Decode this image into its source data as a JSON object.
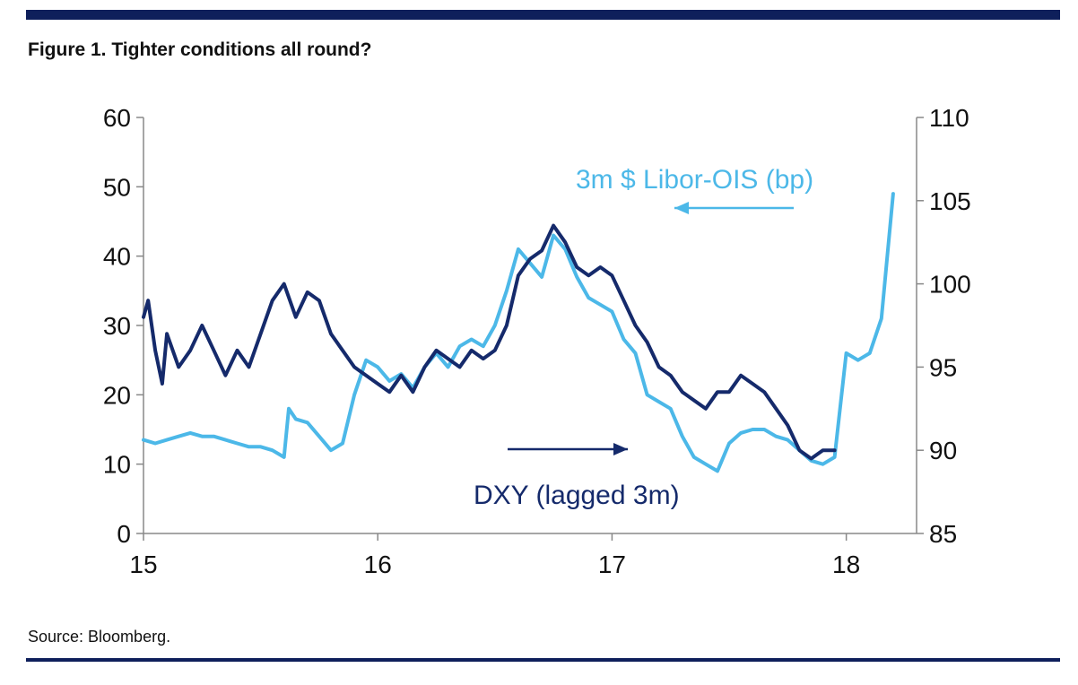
{
  "figure": {
    "title": "Figure 1. Tighter conditions all round?",
    "source": "Source: Bloomberg."
  },
  "chart_data": {
    "type": "line",
    "title": "Figure 1. Tighter conditions all round?",
    "xlabel": "",
    "x_ticks": [
      "15",
      "16",
      "17",
      "18"
    ],
    "xlim": [
      2015.0,
      2018.3
    ],
    "y_left": {
      "label": "",
      "ylim": [
        0,
        60
      ],
      "ticks": [
        0,
        10,
        20,
        30,
        40,
        50,
        60
      ]
    },
    "y_right": {
      "label": "",
      "ylim": [
        85,
        110
      ],
      "ticks": [
        85,
        90,
        95,
        100,
        105,
        110
      ]
    },
    "grid": false,
    "colors": {
      "libor_ois": "#4cb8e8",
      "dxy": "#152a6b",
      "axis": "#888888"
    },
    "annotations": [
      {
        "text": "3m $ Libor-OIS (bp)",
        "series": "libor_ois",
        "arrow": "left"
      },
      {
        "text": "DXY (lagged 3m)",
        "series": "dxy",
        "arrow": "right"
      }
    ],
    "series": [
      {
        "name": "3m $ Libor-OIS (bp)",
        "key": "libor_ois",
        "axis": "left",
        "x": [
          2015.0,
          2015.05,
          2015.1,
          2015.15,
          2015.2,
          2015.25,
          2015.3,
          2015.35,
          2015.4,
          2015.45,
          2015.5,
          2015.55,
          2015.6,
          2015.62,
          2015.65,
          2015.7,
          2015.75,
          2015.8,
          2015.85,
          2015.9,
          2015.95,
          2016.0,
          2016.05,
          2016.1,
          2016.15,
          2016.2,
          2016.25,
          2016.3,
          2016.35,
          2016.4,
          2016.45,
          2016.5,
          2016.55,
          2016.6,
          2016.65,
          2016.7,
          2016.75,
          2016.8,
          2016.85,
          2016.9,
          2016.95,
          2017.0,
          2017.05,
          2017.1,
          2017.15,
          2017.2,
          2017.25,
          2017.3,
          2017.35,
          2017.4,
          2017.45,
          2017.5,
          2017.55,
          2017.6,
          2017.65,
          2017.7,
          2017.75,
          2017.8,
          2017.85,
          2017.9,
          2017.95,
          2018.0,
          2018.05,
          2018.1,
          2018.15,
          2018.2
        ],
        "values": [
          13.5,
          13,
          13.5,
          14,
          14.5,
          14,
          14,
          13.5,
          13,
          12.5,
          12.5,
          12,
          11,
          18,
          16.5,
          16,
          14,
          12,
          13,
          20,
          25,
          24,
          22,
          23,
          21,
          24,
          26,
          24,
          27,
          28,
          27,
          30,
          35,
          41,
          39,
          37,
          43,
          41,
          37,
          34,
          33,
          32,
          28,
          26,
          20,
          19,
          18,
          14,
          11,
          10,
          9,
          13,
          14.5,
          15,
          15,
          14,
          13.5,
          12,
          10.5,
          10,
          11,
          26,
          25,
          26,
          31,
          49
        ]
      },
      {
        "name": "DXY (lagged 3m)",
        "key": "dxy",
        "axis": "right",
        "x": [
          2015.0,
          2015.02,
          2015.05,
          2015.08,
          2015.1,
          2015.15,
          2015.2,
          2015.25,
          2015.3,
          2015.35,
          2015.4,
          2015.45,
          2015.5,
          2015.55,
          2015.6,
          2015.65,
          2015.7,
          2015.75,
          2015.8,
          2015.85,
          2015.9,
          2015.95,
          2016.0,
          2016.05,
          2016.1,
          2016.15,
          2016.2,
          2016.25,
          2016.3,
          2016.35,
          2016.4,
          2016.45,
          2016.5,
          2016.55,
          2016.6,
          2016.65,
          2016.7,
          2016.75,
          2016.8,
          2016.85,
          2016.9,
          2016.95,
          2017.0,
          2017.05,
          2017.1,
          2017.15,
          2017.2,
          2017.25,
          2017.3,
          2017.35,
          2017.4,
          2017.45,
          2017.5,
          2017.55,
          2017.6,
          2017.65,
          2017.7,
          2017.75,
          2017.8,
          2017.85,
          2017.9,
          2017.95
        ],
        "values": [
          98,
          99,
          96,
          94,
          97,
          95,
          96,
          97.5,
          96,
          94.5,
          96,
          95,
          97,
          99,
          100,
          98,
          99.5,
          99,
          97,
          96,
          95,
          94.5,
          94,
          93.5,
          94.5,
          93.5,
          95,
          96,
          95.5,
          95,
          96,
          95.5,
          96,
          97.5,
          100.5,
          101.5,
          102,
          103.5,
          102.5,
          101,
          100.5,
          101,
          100.5,
          99,
          97.5,
          96.5,
          95,
          94.5,
          93.5,
          93,
          92.5,
          93.5,
          93.5,
          94.5,
          94,
          93.5,
          92.5,
          91.5,
          90,
          89.5,
          90,
          90
        ]
      }
    ]
  }
}
